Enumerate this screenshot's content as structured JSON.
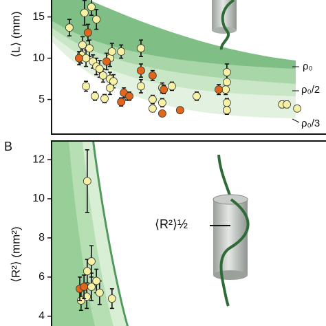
{
  "chart_data": [
    {
      "type": "scatter",
      "y_label": "⟨L⟩ (mm)",
      "xlim": [
        0,
        100
      ],
      "ylim": [
        0.8,
        17.05
      ],
      "yticks": [
        5,
        10,
        15
      ],
      "curve_labels": [
        "ρ₀",
        "ρ₀/2",
        "ρ₀/3"
      ],
      "series": [
        {
          "color": "#f7f1a6",
          "x": [
            7.2,
            13.3,
            16.1,
            18.1,
            12.5,
            11.9,
            13.9,
            15.3,
            16.7,
            18.1,
            19.4,
            20.8,
            23.6,
            24.4,
            23.6,
            13.9,
            17.5,
            21.4,
            23.6,
            25,
            28.1,
            30.6,
            36.1,
            36.1,
            40.8,
            44.7,
            44.7,
            48.6,
            40.8,
            58.6,
            70.8,
            70.8,
            70.8,
            70.8,
            70.3,
            93.1,
            95,
            99.2
          ],
          "values": [
            13.7,
            15.5,
            16.2,
            14.7,
            11.6,
            10.4,
            10.0,
            11.2,
            9.6,
            9.0,
            8.7,
            7.9,
            10.0,
            10.8,
            7.5,
            6.6,
            5.4,
            5.1,
            6.4,
            7.2,
            10.8,
            5.4,
            11.2,
            6.6,
            5.0,
            6.4,
            4.6,
            6.6,
            3.9,
            5.4,
            8.3,
            7.1,
            4.6,
            3.7,
            6.2,
            4.4,
            4.4,
            3.9
          ],
          "errors": [
            1.0,
            1.5,
            1.0,
            1.2,
            1.0,
            1.0,
            1.0,
            1.0,
            0.8,
            1.0,
            1.0,
            0.8,
            1.0,
            1.0,
            0.8,
            0.6,
            0.5,
            0.5,
            0.8,
            0.8,
            0.8,
            0.5,
            1.0,
            0.8,
            0.5,
            0.6,
            0.5,
            0.5,
            0.4,
            0.5,
            1.0,
            0.8,
            0.5,
            0.5,
            0.6,
            0.4,
            0.4,
            0.3
          ]
        },
        {
          "color": "#e0661c",
          "x": [
            14.7,
            11.1,
            22.2,
            29.2,
            28.1,
            31.4,
            36.1,
            40.8,
            45.3,
            51.9,
            44.7,
            67.5
          ],
          "values": [
            13.1,
            10.0,
            9.6,
            5.8,
            4.7,
            5.4,
            8.5,
            7.9,
            6.2,
            3.7,
            3.3,
            6.2
          ],
          "errors": [
            1.0,
            0.8,
            1.0,
            0.6,
            0.5,
            0.5,
            0.8,
            0.6,
            0.5,
            0.3,
            0.3,
            0.6
          ]
        }
      ]
    },
    {
      "type": "scatter",
      "panel_label": "B",
      "y_label": "⟨R²⟩ (mm²)",
      "annotation": "⟨R²⟩½",
      "xlim": [
        0,
        100
      ],
      "ylim": [
        3.5,
        12.95
      ],
      "yticks": [
        4,
        6,
        8,
        10,
        12
      ],
      "series": [
        {
          "color": "#f7f1a6",
          "x": [
            14.4,
            16.1,
            14.4,
            18.1,
            19.4,
            11.9,
            14.2,
            24.4,
            16.1
          ],
          "values": [
            10.9,
            6.8,
            6.3,
            5.8,
            5.2,
            4.8,
            5.0,
            4.9,
            5.5
          ],
          "errors": [
            1.6,
            0.8,
            0.6,
            0.6,
            0.6,
            0.5,
            0.6,
            0.5,
            0.7
          ]
        },
        {
          "color": "#e0661c",
          "x": [
            11.4,
            13.1
          ],
          "values": [
            5.4,
            5.5
          ],
          "errors": [
            0.6,
            0.6
          ]
        }
      ]
    }
  ]
}
